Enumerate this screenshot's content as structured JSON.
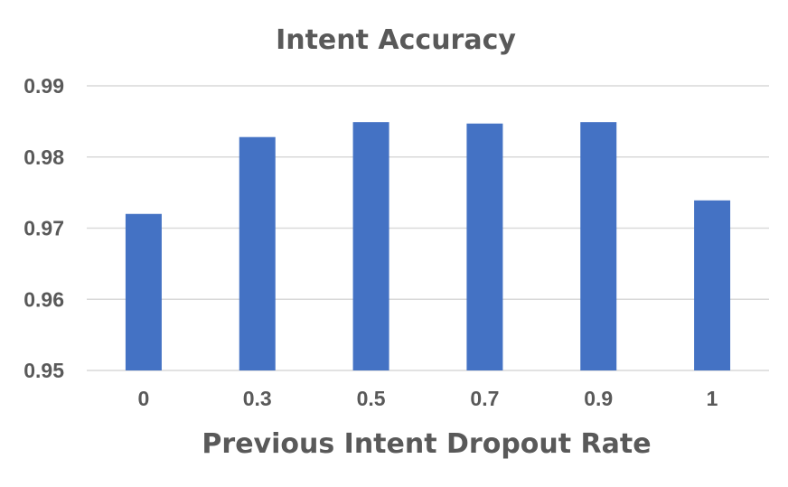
{
  "chart_data": {
    "type": "bar",
    "title": "Intent Accuracy",
    "xlabel": "Previous Intent Dropout Rate",
    "ylabel": "",
    "categories": [
      "0",
      "0.3",
      "0.5",
      "0.7",
      "0.9",
      "1"
    ],
    "values": [
      0.972,
      0.9828,
      0.9849,
      0.9847,
      0.9849,
      0.9739
    ],
    "ylim": [
      0.95,
      0.99
    ],
    "yticks": [
      "0.95",
      "0.96",
      "0.97",
      "0.98",
      "0.99"
    ],
    "grid": true,
    "legend": "none",
    "bar_color": "#4472c4",
    "grid_color": "#d9d9d9",
    "text_color": "#595959"
  }
}
